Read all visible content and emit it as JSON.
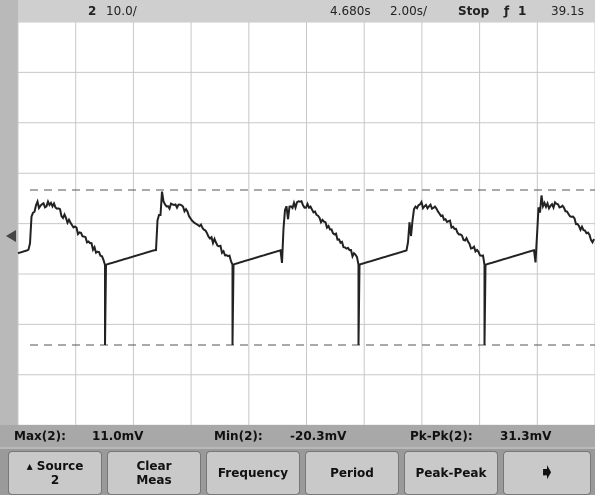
{
  "status_bar": {
    "channel": "2",
    "scale": "10.0/",
    "position": "4.680s",
    "timebase": "2.00s/",
    "run_state": "Stop",
    "trigger_source": "1",
    "trigger_level": "39.1s"
  },
  "measurements": [
    {
      "label": "Max(2):",
      "value": "11.0mV"
    },
    {
      "label": "Min(2):",
      "value": "-20.3mV"
    },
    {
      "label": "Pk-Pk(2):",
      "value": "31.3mV"
    }
  ],
  "softkeys": [
    {
      "label": "Source",
      "sub": "2"
    },
    {
      "label": "Clear",
      "sub": "Meas"
    },
    {
      "label": "Frequency"
    },
    {
      "label": "Period"
    },
    {
      "label": "Peak-Peak"
    }
  ]
}
